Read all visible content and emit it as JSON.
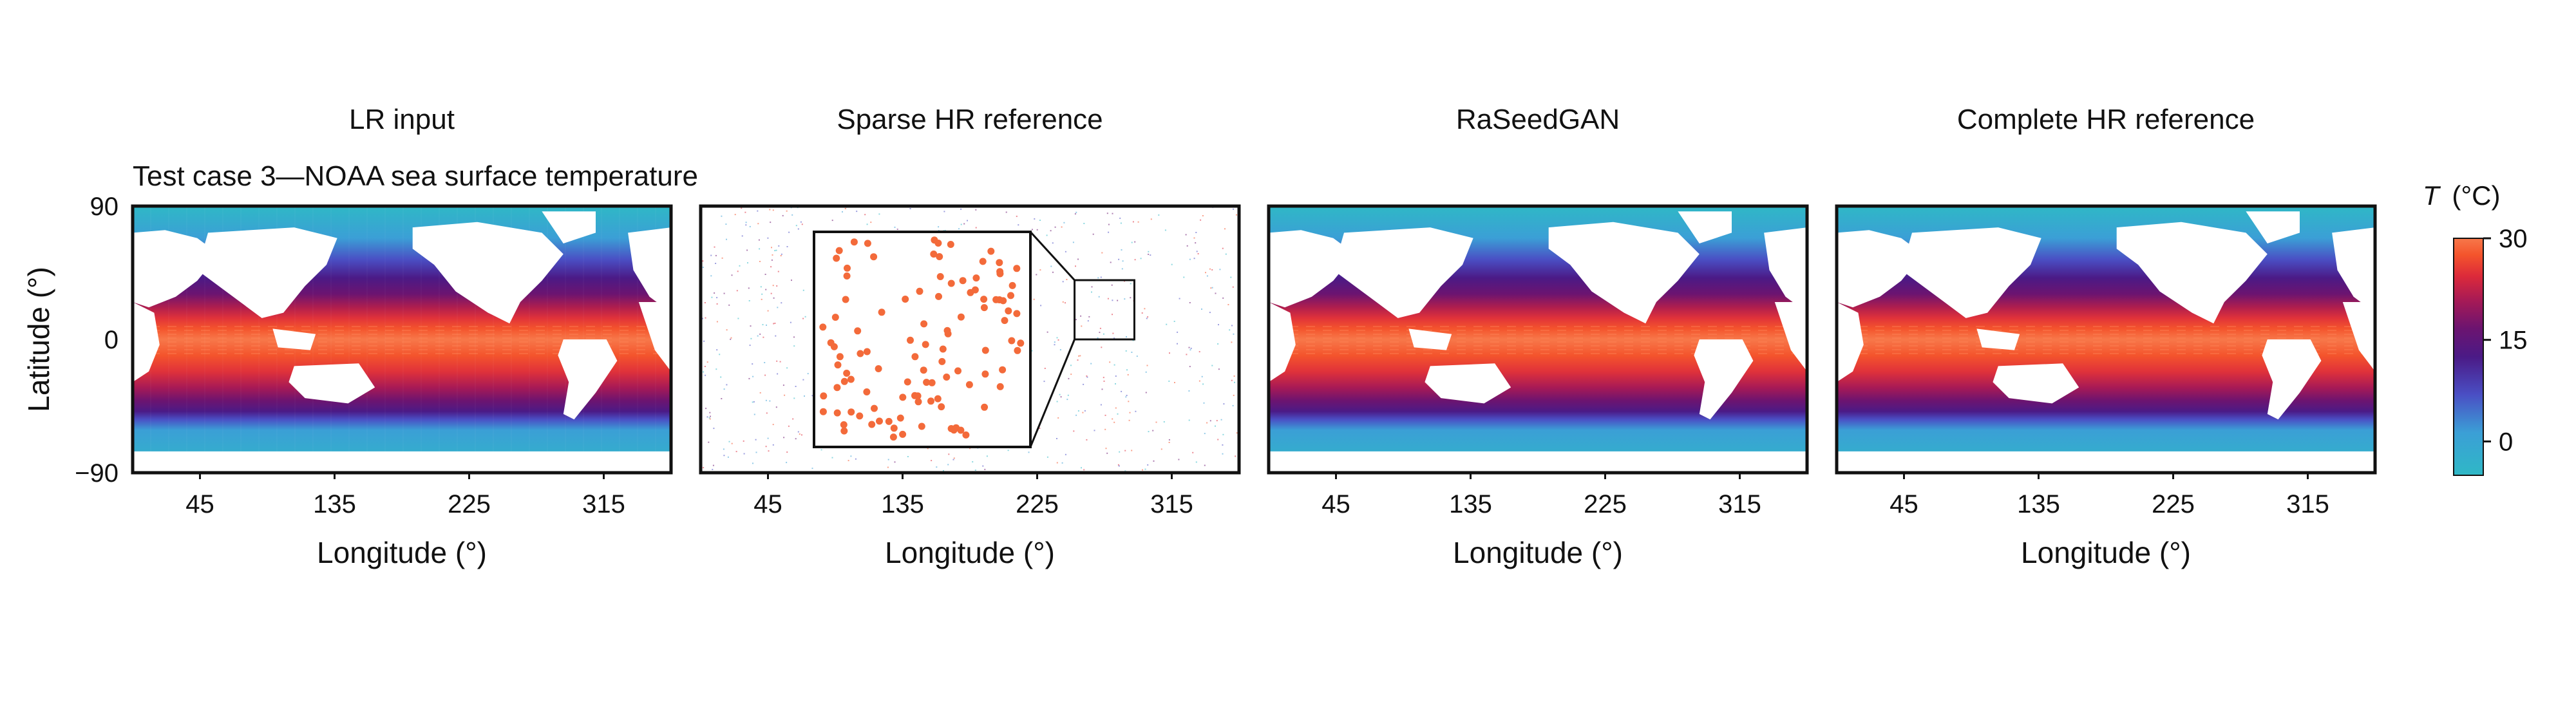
{
  "figure": {
    "case_title": "Test case 3—NOAA sea surface temperature"
  },
  "colorbar": {
    "label_symbol": "T",
    "label_unit": "(°C)",
    "ticks": [
      "30",
      "15",
      "0"
    ],
    "tick_values": [
      30,
      15,
      0
    ],
    "range": [
      -5,
      30
    ],
    "colors": [
      "#2fb8c6",
      "#3b9fd6",
      "#4a4fc4",
      "#4b1a86",
      "#6c1470",
      "#a81a55",
      "#dc2a3a",
      "#f4542c",
      "#f7784a"
    ]
  },
  "chart_data": [
    {
      "type": "heatmap",
      "title": "LR input",
      "xlabel": "Longitude (°)",
      "ylabel": "Latitude (°)",
      "xticks": [
        45,
        135,
        225,
        315
      ],
      "xtick_labels": [
        "45",
        "135",
        "225",
        "315"
      ],
      "yticks": [
        90,
        0,
        -90
      ],
      "ytick_labels": [
        "90",
        "0",
        "−90"
      ],
      "xlim": [
        0,
        360
      ],
      "ylim": [
        -90,
        90
      ],
      "value_range": [
        -5,
        30
      ],
      "units": "°C"
    },
    {
      "type": "scatter",
      "title": "Sparse HR reference",
      "xlabel": "Longitude (°)",
      "xticks": [
        45,
        135,
        225,
        315
      ],
      "xtick_labels": [
        "45",
        "135",
        "225",
        "315"
      ],
      "xlim": [
        0,
        360
      ],
      "ylim": [
        -90,
        90
      ],
      "inset": {
        "zoom_region_lon": [
          250,
          290
        ],
        "zoom_region_lat": [
          0,
          40
        ]
      }
    },
    {
      "type": "heatmap",
      "title": "RaSeedGAN",
      "xlabel": "Longitude (°)",
      "xticks": [
        45,
        135,
        225,
        315
      ],
      "xtick_labels": [
        "45",
        "135",
        "225",
        "315"
      ],
      "xlim": [
        0,
        360
      ],
      "ylim": [
        -90,
        90
      ],
      "value_range": [
        -5,
        30
      ],
      "units": "°C"
    },
    {
      "type": "heatmap",
      "title": "Complete HR reference",
      "xlabel": "Longitude (°)",
      "xticks": [
        45,
        135,
        225,
        315
      ],
      "xtick_labels": [
        "45",
        "135",
        "225",
        "315"
      ],
      "xlim": [
        0,
        360
      ],
      "ylim": [
        -90,
        90
      ],
      "value_range": [
        -5,
        30
      ],
      "units": "°C"
    }
  ]
}
